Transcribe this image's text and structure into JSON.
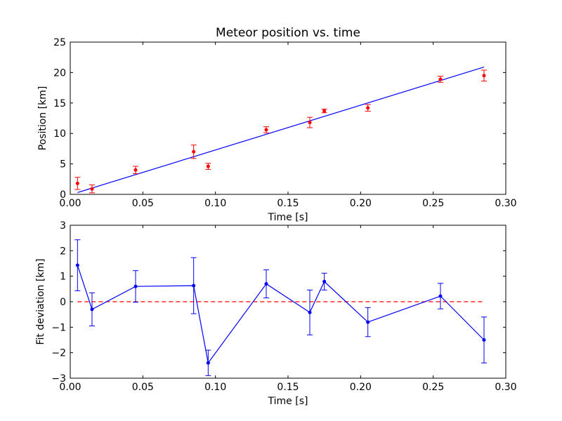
{
  "chart_data": [
    {
      "type": "scatter",
      "title": "Meteor position vs. time",
      "xlabel": "Time [s]",
      "ylabel": "Position [km]",
      "xlim": [
        0.0,
        0.3
      ],
      "ylim": [
        0,
        25
      ],
      "x_ticks": [
        "0.00",
        "0.05",
        "0.10",
        "0.15",
        "0.20",
        "0.25",
        "0.30"
      ],
      "y_ticks": [
        "0",
        "5",
        "10",
        "15",
        "20",
        "25"
      ],
      "grid": false,
      "colors": {
        "points": "#ff0000",
        "fit": "#0000ff"
      },
      "series": [
        {
          "style": "points-with-errorbars",
          "x": [
            0.005,
            0.015,
            0.045,
            0.085,
            0.095,
            0.135,
            0.165,
            0.175,
            0.205,
            0.255,
            0.285
          ],
          "y": [
            1.8,
            0.9,
            4.0,
            7.0,
            4.6,
            10.6,
            11.8,
            13.7,
            14.2,
            18.9,
            19.5
          ],
          "err": [
            1.0,
            0.65,
            0.6,
            1.1,
            0.5,
            0.5,
            0.85,
            0.3,
            0.55,
            0.5,
            0.9
          ]
        },
        {
          "style": "line",
          "x": [
            0.005,
            0.285
          ],
          "y": [
            0.3,
            20.9
          ]
        }
      ]
    },
    {
      "type": "line",
      "xlabel": "Time [s]",
      "ylabel": "Fit deviation [km]",
      "xlim": [
        0.0,
        0.3
      ],
      "ylim": [
        -3,
        3
      ],
      "x_ticks": [
        "0.00",
        "0.05",
        "0.10",
        "0.15",
        "0.20",
        "0.25",
        "0.30"
      ],
      "y_ticks": [
        "−3",
        "−2",
        "−1",
        "0",
        "1",
        "2",
        "3"
      ],
      "grid": false,
      "colors": {
        "series": "#0000ff",
        "zero_line": "#ff0000"
      },
      "reference_line": {
        "y": 0,
        "x": [
          0.005,
          0.285
        ],
        "style": "dashed"
      },
      "series": [
        {
          "style": "line-points-errorbars",
          "x": [
            0.005,
            0.015,
            0.045,
            0.085,
            0.095,
            0.135,
            0.165,
            0.175,
            0.205,
            0.255,
            0.285
          ],
          "y": [
            1.43,
            -0.3,
            0.6,
            0.63,
            -2.4,
            0.7,
            -0.42,
            0.79,
            -0.8,
            0.22,
            -1.5
          ],
          "err": [
            1.0,
            0.65,
            0.62,
            1.1,
            0.5,
            0.55,
            0.88,
            0.33,
            0.57,
            0.5,
            0.9
          ]
        }
      ]
    }
  ]
}
